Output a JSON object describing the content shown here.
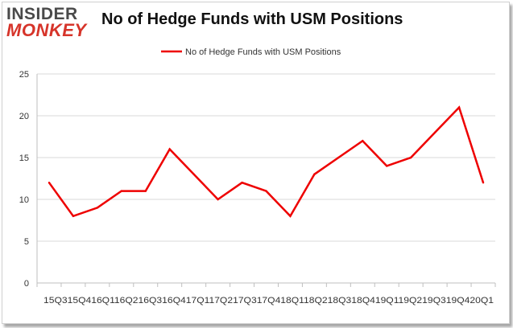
{
  "logo": {
    "line1": "INSIDER",
    "line2": "MONKEY"
  },
  "chart_data": {
    "type": "line",
    "title": "No of Hedge Funds with USM Positions",
    "xlabel": "",
    "ylabel": "",
    "categories": [
      "2015Q3",
      "2015Q4",
      "2016Q1",
      "2016Q2",
      "2016Q3",
      "2016Q4",
      "2017Q1",
      "2017Q2",
      "2017Q3",
      "2017Q4",
      "2018Q1",
      "2018Q2",
      "2018Q3",
      "2018Q4",
      "2019Q1",
      "2019Q2",
      "2019Q3",
      "2019Q4",
      "2020Q1"
    ],
    "x_tick_text": "15Q315Q416Q116Q216Q316Q417Q117Q217Q317Q418Q118Q218Q318Q419Q119Q219Q319Q420Q1",
    "series": [
      {
        "name": "No of Hedge Funds with USM Positions",
        "values": [
          12,
          8,
          9,
          11,
          11,
          16,
          13,
          10,
          12,
          11,
          8,
          13,
          15,
          17,
          14,
          15,
          18,
          21,
          12
        ],
        "color": "#ee0000"
      }
    ],
    "ylim": [
      0,
      25
    ],
    "yticks": [
      0,
      5,
      10,
      15,
      20,
      25
    ],
    "grid": true,
    "legend": "top-center"
  }
}
